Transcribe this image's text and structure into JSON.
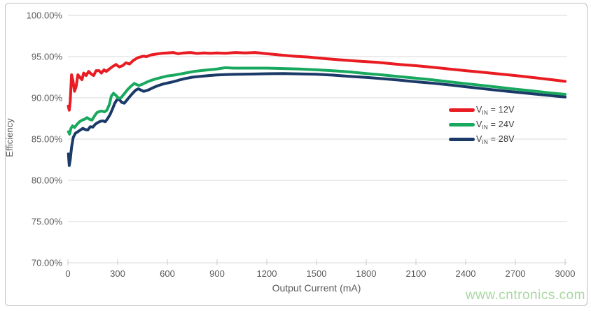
{
  "frame": {
    "background": "#ffffff",
    "border_color": "#bfbfbf"
  },
  "watermark": {
    "text": "www.cntronics.com",
    "color": "#a8d8a1"
  },
  "chart_data": {
    "type": "line",
    "title": "",
    "xlabel": "Output Current (mA)",
    "ylabel": "Efficiency",
    "xlim": [
      0,
      3000
    ],
    "ylim": [
      70,
      100
    ],
    "grid": "horizontal",
    "gridline_color": "#d9d9d9",
    "tick_mark_color": "#c8c8c8",
    "tick_label_color": "#595959",
    "legend_position": "right-middle",
    "x_ticks": [
      0,
      300,
      600,
      900,
      1200,
      1500,
      1800,
      2100,
      2400,
      2700,
      3000
    ],
    "y_ticks": {
      "values": [
        100,
        95,
        90,
        85,
        80,
        75,
        70
      ],
      "labels": [
        "100.00%",
        "95.00%",
        "90.00%",
        "85.00%",
        "80.00%",
        "75.00%",
        "70.00%"
      ]
    },
    "series": [
      {
        "name": "VIN = 12V",
        "legend": {
          "base": "V",
          "sub": "IN",
          "suffix": " = 12V"
        },
        "color": "#e81c22",
        "points": [
          [
            2,
            89.0
          ],
          [
            8,
            88.5
          ],
          [
            14,
            89.6
          ],
          [
            22,
            92.8
          ],
          [
            30,
            92.1
          ],
          [
            40,
            90.8
          ],
          [
            50,
            91.4
          ],
          [
            60,
            92.8
          ],
          [
            72,
            92.5
          ],
          [
            85,
            92.2
          ],
          [
            95,
            93.0
          ],
          [
            110,
            92.7
          ],
          [
            125,
            93.2
          ],
          [
            140,
            92.9
          ],
          [
            155,
            92.7
          ],
          [
            170,
            93.3
          ],
          [
            188,
            93.3
          ],
          [
            202,
            93.0
          ],
          [
            218,
            93.4
          ],
          [
            232,
            93.2
          ],
          [
            250,
            93.5
          ],
          [
            270,
            93.8
          ],
          [
            290,
            94.05
          ],
          [
            310,
            93.75
          ],
          [
            330,
            93.9
          ],
          [
            350,
            94.25
          ],
          [
            372,
            94.1
          ],
          [
            395,
            94.55
          ],
          [
            420,
            94.85
          ],
          [
            435,
            94.95
          ],
          [
            455,
            95.05
          ],
          [
            475,
            95.0
          ],
          [
            500,
            95.2
          ],
          [
            530,
            95.3
          ],
          [
            565,
            95.4
          ],
          [
            600,
            95.45
          ],
          [
            635,
            95.5
          ],
          [
            665,
            95.35
          ],
          [
            700,
            95.45
          ],
          [
            740,
            95.5
          ],
          [
            780,
            95.38
          ],
          [
            820,
            95.45
          ],
          [
            860,
            95.4
          ],
          [
            900,
            95.45
          ],
          [
            950,
            95.4
          ],
          [
            1010,
            95.5
          ],
          [
            1070,
            95.45
          ],
          [
            1130,
            95.5
          ],
          [
            1200,
            95.35
          ],
          [
            1280,
            95.2
          ],
          [
            1360,
            95.05
          ],
          [
            1450,
            94.95
          ],
          [
            1550,
            94.75
          ],
          [
            1650,
            94.6
          ],
          [
            1750,
            94.45
          ],
          [
            1870,
            94.3
          ],
          [
            2000,
            94.05
          ],
          [
            2100,
            93.9
          ],
          [
            2200,
            93.7
          ],
          [
            2300,
            93.5
          ],
          [
            2400,
            93.3
          ],
          [
            2500,
            93.1
          ],
          [
            2600,
            92.9
          ],
          [
            2700,
            92.7
          ],
          [
            2800,
            92.48
          ],
          [
            2900,
            92.25
          ],
          [
            3000,
            92.0
          ]
        ]
      },
      {
        "name": "VIN = 24V",
        "legend": {
          "base": "V",
          "sub": "IN",
          "suffix": " = 24V"
        },
        "color": "#18a85e",
        "points": [
          [
            3,
            85.9
          ],
          [
            10,
            85.6
          ],
          [
            18,
            86.3
          ],
          [
            28,
            86.6
          ],
          [
            40,
            86.4
          ],
          [
            55,
            86.8
          ],
          [
            70,
            87.1
          ],
          [
            85,
            87.3
          ],
          [
            100,
            87.4
          ],
          [
            115,
            87.6
          ],
          [
            130,
            87.4
          ],
          [
            145,
            87.3
          ],
          [
            160,
            87.8
          ],
          [
            175,
            88.2
          ],
          [
            190,
            88.35
          ],
          [
            205,
            88.4
          ],
          [
            220,
            88.3
          ],
          [
            235,
            88.5
          ],
          [
            250,
            89.2
          ],
          [
            262,
            90.2
          ],
          [
            275,
            90.55
          ],
          [
            290,
            90.3
          ],
          [
            305,
            89.95
          ],
          [
            320,
            90.0
          ],
          [
            340,
            90.5
          ],
          [
            360,
            91.0
          ],
          [
            380,
            91.4
          ],
          [
            400,
            91.75
          ],
          [
            415,
            91.6
          ],
          [
            430,
            91.5
          ],
          [
            450,
            91.65
          ],
          [
            475,
            91.9
          ],
          [
            500,
            92.1
          ],
          [
            530,
            92.3
          ],
          [
            560,
            92.45
          ],
          [
            600,
            92.65
          ],
          [
            640,
            92.75
          ],
          [
            680,
            92.9
          ],
          [
            720,
            93.05
          ],
          [
            760,
            93.2
          ],
          [
            800,
            93.3
          ],
          [
            850,
            93.4
          ],
          [
            900,
            93.5
          ],
          [
            950,
            93.65
          ],
          [
            1000,
            93.6
          ],
          [
            1100,
            93.6
          ],
          [
            1200,
            93.6
          ],
          [
            1300,
            93.55
          ],
          [
            1400,
            93.5
          ],
          [
            1500,
            93.4
          ],
          [
            1600,
            93.28
          ],
          [
            1700,
            93.14
          ],
          [
            1800,
            92.95
          ],
          [
            1900,
            92.78
          ],
          [
            2000,
            92.58
          ],
          [
            2100,
            92.38
          ],
          [
            2200,
            92.18
          ],
          [
            2300,
            91.95
          ],
          [
            2400,
            91.72
          ],
          [
            2500,
            91.5
          ],
          [
            2600,
            91.28
          ],
          [
            2700,
            91.05
          ],
          [
            2800,
            90.85
          ],
          [
            2900,
            90.62
          ],
          [
            3000,
            90.42
          ]
        ]
      },
      {
        "name": "VIN = 28V",
        "legend": {
          "base": "V",
          "sub": "IN",
          "suffix": " = 28V"
        },
        "color": "#1b3a68",
        "points": [
          [
            3,
            83.2
          ],
          [
            8,
            81.8
          ],
          [
            14,
            82.5
          ],
          [
            22,
            84.0
          ],
          [
            32,
            85.2
          ],
          [
            45,
            85.7
          ],
          [
            60,
            85.9
          ],
          [
            75,
            86.1
          ],
          [
            90,
            86.3
          ],
          [
            105,
            86.15
          ],
          [
            120,
            86.1
          ],
          [
            135,
            86.5
          ],
          [
            150,
            86.45
          ],
          [
            165,
            86.8
          ],
          [
            180,
            87.0
          ],
          [
            195,
            87.15
          ],
          [
            210,
            87.2
          ],
          [
            225,
            87.1
          ],
          [
            240,
            87.5
          ],
          [
            255,
            88.0
          ],
          [
            268,
            88.6
          ],
          [
            282,
            89.3
          ],
          [
            295,
            89.75
          ],
          [
            310,
            89.8
          ],
          [
            325,
            89.45
          ],
          [
            340,
            89.35
          ],
          [
            355,
            89.7
          ],
          [
            375,
            90.2
          ],
          [
            395,
            90.65
          ],
          [
            410,
            90.95
          ],
          [
            425,
            91.1
          ],
          [
            440,
            90.95
          ],
          [
            455,
            90.8
          ],
          [
            470,
            90.85
          ],
          [
            490,
            91.0
          ],
          [
            515,
            91.25
          ],
          [
            540,
            91.45
          ],
          [
            570,
            91.65
          ],
          [
            600,
            91.8
          ],
          [
            635,
            91.95
          ],
          [
            670,
            92.15
          ],
          [
            710,
            92.35
          ],
          [
            750,
            92.5
          ],
          [
            800,
            92.6
          ],
          [
            850,
            92.7
          ],
          [
            900,
            92.78
          ],
          [
            950,
            92.82
          ],
          [
            1000,
            92.85
          ],
          [
            1100,
            92.88
          ],
          [
            1200,
            92.92
          ],
          [
            1300,
            92.95
          ],
          [
            1400,
            92.9
          ],
          [
            1500,
            92.86
          ],
          [
            1600,
            92.75
          ],
          [
            1700,
            92.6
          ],
          [
            1800,
            92.48
          ],
          [
            1900,
            92.32
          ],
          [
            2000,
            92.15
          ],
          [
            2100,
            91.95
          ],
          [
            2200,
            91.78
          ],
          [
            2300,
            91.58
          ],
          [
            2400,
            91.35
          ],
          [
            2500,
            91.12
          ],
          [
            2600,
            90.9
          ],
          [
            2700,
            90.7
          ],
          [
            2800,
            90.5
          ],
          [
            2900,
            90.3
          ],
          [
            3000,
            90.1
          ]
        ]
      }
    ]
  }
}
